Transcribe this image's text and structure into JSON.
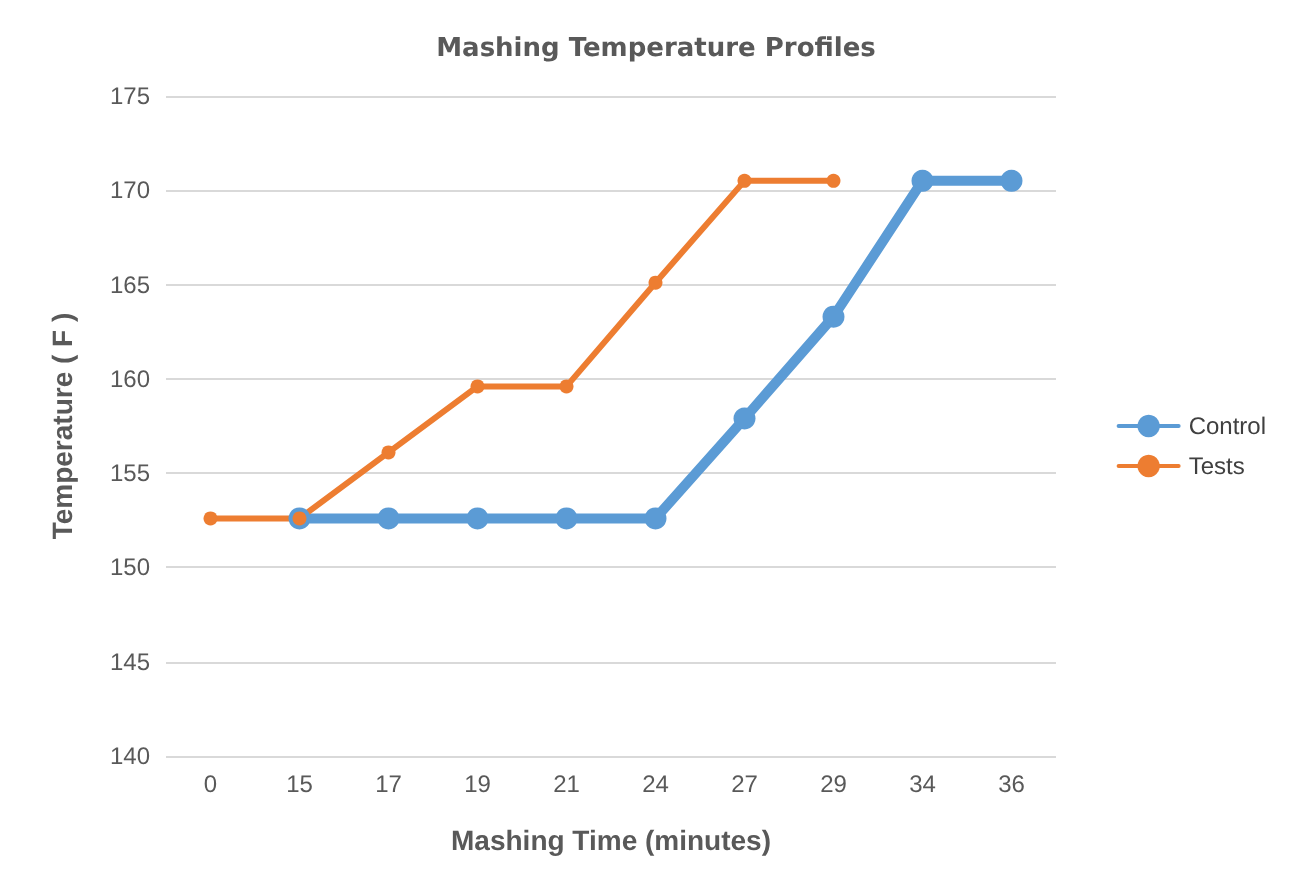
{
  "chart_data": {
    "type": "line",
    "title": "Mashing Temperature Profiles",
    "xlabel": "Mashing Time (minutes)",
    "ylabel": "Temperature ( F )",
    "categories": [
      "0",
      "15",
      "17",
      "19",
      "21",
      "24",
      "27",
      "29",
      "34",
      "36"
    ],
    "series": [
      {
        "name": "Control",
        "color": "#5b9bd5",
        "values": [
          null,
          152.6,
          152.6,
          152.6,
          152.6,
          152.6,
          157.9,
          163.3,
          170.5,
          170.5
        ]
      },
      {
        "name": "Tests",
        "color": "#ed7d31",
        "values": [
          152.6,
          152.6,
          156.1,
          159.6,
          159.6,
          165.1,
          170.5,
          170.5,
          null,
          null
        ]
      }
    ],
    "ylim": [
      140,
      175
    ],
    "yticks": [
      140,
      145,
      150,
      155,
      160,
      165,
      170,
      175
    ],
    "grid": "y",
    "legend": "right",
    "marker": "circle",
    "line_style": "solid"
  }
}
